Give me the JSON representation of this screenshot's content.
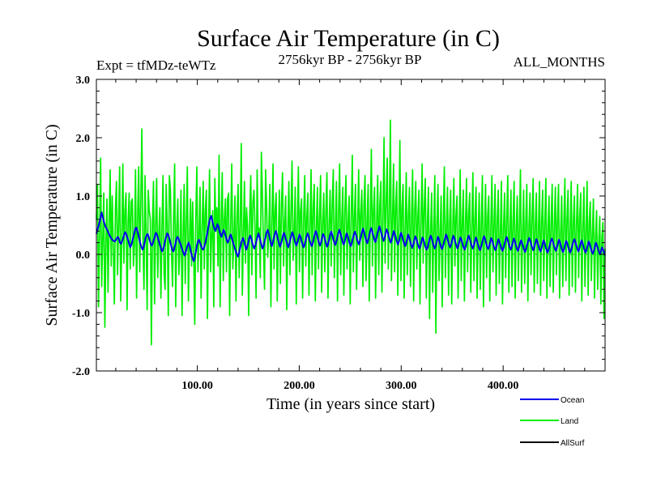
{
  "chart_data": {
    "type": "line",
    "title": "Surface Air Temperature (in C)",
    "subtitle": "2756kyr BP - 2756kyr BP",
    "experiment_label": "Expt = tfMDz-teWTz",
    "month_label": "ALL_MONTHS",
    "xlabel": "Time (in years since start)",
    "ylabel": "Surface Air Temperature (in C)",
    "xlim": [
      1,
      500
    ],
    "ylim": [
      -2.0,
      3.0
    ],
    "x_ticks": [
      100,
      200,
      300,
      400
    ],
    "x_tick_labels": [
      "100.00",
      "200.00",
      "300.00",
      "400.00"
    ],
    "y_ticks": [
      -2,
      -1,
      0,
      1,
      2,
      3
    ],
    "y_tick_labels": [
      "-2.0",
      "-1.0",
      "0.0",
      "1.0",
      "2.0",
      "3.0"
    ],
    "zero_reference": 0.0,
    "series": [
      {
        "name": "Land",
        "color": "#00ee00",
        "values": [
          0.6,
          1.2,
          -0.9,
          0.35,
          1.65,
          -0.55,
          0.25,
          1.05,
          -1.25,
          0.2,
          0.95,
          -0.65,
          0.45,
          1.45,
          -0.2,
          1.0,
          0.1,
          -0.85,
          0.8,
          1.25,
          -0.35,
          0.55,
          1.5,
          -0.8,
          0.2,
          1.55,
          -0.15,
          0.75,
          1.05,
          -0.95,
          0.55,
          1.05,
          -0.25,
          0.9,
          0.95,
          -0.2,
          0.15,
          1.45,
          -0.75,
          0.65,
          1.5,
          -0.3,
          0.9,
          2.15,
          0.25,
          -0.6,
          1.35,
          0.35,
          -0.95,
          1.1,
          0.75,
          0.6,
          -1.55,
          0.5,
          1.25,
          -0.85,
          0.5,
          1.3,
          -0.4,
          0.35,
          0.8,
          -0.75,
          0.45,
          1.35,
          -0.35,
          -0.6,
          1.2,
          0.5,
          -1.05,
          1.35,
          1.1,
          0.05,
          -0.55,
          0.6,
          1.55,
          -0.9,
          0.45,
          0.95,
          -0.35,
          0.1,
          1.1,
          -1.05,
          0.3,
          1.2,
          -0.5,
          0.55,
          1.5,
          -0.8,
          0.25,
          0.95,
          -0.2,
          0.9,
          0.05,
          -1.2,
          0.6,
          1.5,
          -0.3,
          0.3,
          1.15,
          -0.75,
          0.45,
          1.25,
          -0.25,
          0.75,
          1.1,
          -1.1,
          0.4,
          1.45,
          -0.3,
          0.35,
          0.75,
          -0.9,
          1.3,
          0.4,
          0.8,
          -0.2,
          1.7,
          -0.9,
          0.55,
          1.4,
          -0.45,
          0.6,
          0.95,
          -0.3,
          0.95,
          1.05,
          -1.05,
          0.5,
          1.55,
          -0.25,
          0.25,
          1.0,
          -0.8,
          0.65,
          1.2,
          -0.4,
          0.5,
          1.9,
          -0.7,
          0.3,
          1.25,
          -0.15,
          0.8,
          0.45,
          -1.05,
          0.7,
          1.35,
          -0.35,
          0.9,
          1.1,
          0.45,
          -0.75,
          1.45,
          0.3,
          0.45,
          -0.4,
          1.75,
          1.0,
          0.1,
          -0.6,
          1.45,
          0.8,
          -0.05,
          0.35,
          1.2,
          -0.9,
          0.55,
          1.55,
          -0.25,
          0.75,
          1.05,
          -0.8,
          0.2,
          1.1,
          -0.5,
          0.85,
          1.4,
          -0.2,
          0.55,
          1.0,
          -0.95,
          0.4,
          1.25,
          -0.35,
          0.7,
          1.6,
          -0.1,
          0.35,
          1.15,
          -0.85,
          0.55,
          1.5,
          -0.3,
          0.75,
          0.95,
          -0.75,
          0.6,
          1.35,
          -0.2,
          0.65,
          1.05,
          -0.7,
          0.45,
          1.45,
          -0.35,
          0.8,
          1.2,
          -0.8,
          0.45,
          1.15,
          -0.25,
          0.65,
          1.35,
          -0.65,
          0.55,
          1.05,
          -0.3,
          0.75,
          1.4,
          -0.75,
          0.5,
          1.1,
          -0.2,
          0.85,
          1.45,
          -0.4,
          0.45,
          1.25,
          -0.8,
          0.7,
          1.55,
          -0.35,
          0.55,
          1.15,
          -0.7,
          0.75,
          1.35,
          -0.25,
          0.55,
          1.0,
          -0.85,
          0.65,
          1.7,
          -0.3,
          0.65,
          1.2,
          -0.6,
          0.5,
          1.45,
          -0.1,
          0.7,
          1.1,
          -0.55,
          0.85,
          1.35,
          -0.45,
          0.6,
          1.2,
          -0.8,
          0.55,
          1.8,
          -0.2,
          0.75,
          1.15,
          -0.75,
          0.55,
          1.35,
          -0.35,
          0.85,
          1.25,
          -0.65,
          0.6,
          2.0,
          -0.15,
          0.85,
          1.65,
          -0.25,
          0.65,
          2.3,
          -0.45,
          0.55,
          1.55,
          -0.3,
          0.85,
          1.25,
          -0.7,
          0.55,
          1.95,
          -0.45,
          0.8,
          1.2,
          -0.75,
          0.45,
          1.4,
          -0.35,
          0.65,
          1.15,
          -0.55,
          0.6,
          1.45,
          -0.8,
          0.75,
          1.25,
          -0.25,
          0.65,
          1.1,
          -0.85,
          0.55,
          1.55,
          -0.15,
          0.8,
          1.3,
          -0.75,
          0.55,
          1.15,
          -1.1,
          0.4,
          1.05,
          -0.65,
          0.45,
          1.35,
          -1.35,
          0.55,
          1.2,
          -0.45,
          0.35,
          1.0,
          -0.9,
          0.5,
          1.5,
          -0.4,
          0.45,
          1.15,
          -0.7,
          0.55,
          1.1,
          -0.85,
          0.45,
          1.3,
          -0.2,
          0.65,
          1.0,
          -0.75,
          0.35,
          1.45,
          -0.45,
          0.55,
          1.1,
          -0.8,
          0.5,
          1.3,
          -0.3,
          0.7,
          1.05,
          -0.65,
          0.45,
          1.4,
          -0.45,
          0.6,
          1.15,
          -0.75,
          0.35,
          1.05,
          -0.6,
          0.55,
          1.35,
          -0.9,
          0.4,
          1.2,
          -0.4,
          0.65,
          1.0,
          -0.8,
          0.45,
          1.35,
          -0.3,
          0.5,
          1.2,
          -0.7,
          0.55,
          1.1,
          -0.5,
          0.35,
          1.25,
          -0.85,
          0.45,
          1.05,
          -0.4,
          0.6,
          1.35,
          -0.65,
          0.4,
          1.1,
          -0.55,
          0.55,
          1.25,
          -0.75,
          0.45,
          1.0,
          -0.45,
          0.5,
          1.45,
          -0.65,
          0.35,
          1.1,
          -0.5,
          0.55,
          1.2,
          -0.8,
          0.45,
          1.05,
          -0.35,
          0.6,
          1.3,
          -0.65,
          0.45,
          1.05,
          -0.5,
          0.4,
          1.25,
          -0.7,
          0.55,
          1.1,
          -0.45,
          0.5,
          1.3,
          -0.75,
          0.4,
          1.0,
          -0.55,
          0.55,
          1.2,
          -0.65,
          0.45,
          1.15,
          -0.35,
          0.6,
          1.2,
          -0.75,
          0.35,
          1.0,
          -0.55,
          0.5,
          1.3,
          -0.45,
          0.6,
          1.1,
          -0.7,
          0.4,
          1.25,
          -0.55,
          0.55,
          1.0,
          -0.65,
          0.5,
          1.2,
          -0.4,
          0.65,
          1.05,
          -0.8,
          0.45,
          1.15,
          -0.55,
          0.4,
          1.25,
          -0.7,
          0.55,
          0.9,
          -0.45,
          0.35,
          0.95,
          -0.75,
          0.3,
          0.75,
          -0.6,
          0.2,
          0.65,
          -0.85,
          0.3,
          0.55,
          -1.1,
          0.1
        ]
      },
      {
        "name": "Ocean",
        "color": "#0000ee",
        "values": [
          0.35,
          0.42,
          0.48,
          0.55,
          0.62,
          0.72,
          0.66,
          0.58,
          0.52,
          0.47,
          0.44,
          0.4,
          0.36,
          0.32,
          0.29,
          0.26,
          0.24,
          0.23,
          0.22,
          0.25,
          0.28,
          0.3,
          0.26,
          0.2,
          0.18,
          0.22,
          0.27,
          0.33,
          0.38,
          0.35,
          0.3,
          0.24,
          0.18,
          0.12,
          0.16,
          0.22,
          0.3,
          0.37,
          0.44,
          0.46,
          0.4,
          0.33,
          0.25,
          0.18,
          0.12,
          0.08,
          0.12,
          0.2,
          0.28,
          0.33,
          0.35,
          0.3,
          0.24,
          0.18,
          0.15,
          0.19,
          0.25,
          0.31,
          0.37,
          0.34,
          0.28,
          0.22,
          0.16,
          0.1,
          0.05,
          0.08,
          0.15,
          0.23,
          0.3,
          0.36,
          0.34,
          0.28,
          0.21,
          0.14,
          0.08,
          0.05,
          0.1,
          0.18,
          0.26,
          0.3,
          0.27,
          0.22,
          0.18,
          0.12,
          0.07,
          0.02,
          -0.02,
          0.03,
          0.1,
          0.16,
          0.2,
          0.14,
          0.06,
          -0.02,
          -0.08,
          -0.12,
          -0.05,
          0.05,
          0.15,
          0.22,
          0.25,
          0.2,
          0.15,
          0.1,
          0.08,
          0.12,
          0.18,
          0.26,
          0.35,
          0.45,
          0.55,
          0.62,
          0.66,
          0.58,
          0.5,
          0.44,
          0.4,
          0.45,
          0.52,
          0.48,
          0.4,
          0.34,
          0.3,
          0.36,
          0.42,
          0.38,
          0.32,
          0.25,
          0.2,
          0.24,
          0.3,
          0.34,
          0.28,
          0.22,
          0.16,
          0.1,
          0.05,
          0.0,
          -0.04,
          0.02,
          0.1,
          0.18,
          0.24,
          0.28,
          0.22,
          0.15,
          0.08,
          0.12,
          0.2,
          0.28,
          0.32,
          0.27,
          0.2,
          0.14,
          0.1,
          0.15,
          0.22,
          0.3,
          0.36,
          0.3,
          0.23,
          0.16,
          0.1,
          0.14,
          0.22,
          0.3,
          0.38,
          0.42,
          0.36,
          0.28,
          0.2,
          0.14,
          0.2,
          0.28,
          0.35,
          0.4,
          0.34,
          0.26,
          0.19,
          0.13,
          0.18,
          0.25,
          0.33,
          0.37,
          0.31,
          0.24,
          0.17,
          0.12,
          0.17,
          0.25,
          0.32,
          0.38,
          0.33,
          0.26,
          0.2,
          0.15,
          0.2,
          0.27,
          0.34,
          0.3,
          0.23,
          0.17,
          0.12,
          0.16,
          0.24,
          0.31,
          0.36,
          0.31,
          0.24,
          0.18,
          0.14,
          0.19,
          0.27,
          0.35,
          0.4,
          0.34,
          0.27,
          0.2,
          0.15,
          0.2,
          0.28,
          0.35,
          0.32,
          0.25,
          0.18,
          0.13,
          0.18,
          0.26,
          0.34,
          0.39,
          0.33,
          0.26,
          0.2,
          0.16,
          0.22,
          0.3,
          0.37,
          0.42,
          0.36,
          0.29,
          0.22,
          0.17,
          0.21,
          0.29,
          0.36,
          0.32,
          0.25,
          0.19,
          0.14,
          0.19,
          0.27,
          0.34,
          0.39,
          0.34,
          0.27,
          0.21,
          0.17,
          0.23,
          0.31,
          0.38,
          0.44,
          0.38,
          0.31,
          0.24,
          0.19,
          0.24,
          0.32,
          0.4,
          0.45,
          0.39,
          0.32,
          0.26,
          0.21,
          0.27,
          0.35,
          0.42,
          0.48,
          0.42,
          0.35,
          0.28,
          0.23,
          0.28,
          0.36,
          0.43,
          0.38,
          0.31,
          0.25,
          0.2,
          0.25,
          0.33,
          0.4,
          0.35,
          0.28,
          0.22,
          0.17,
          0.22,
          0.3,
          0.37,
          0.32,
          0.25,
          0.19,
          0.14,
          0.19,
          0.27,
          0.34,
          0.29,
          0.22,
          0.16,
          0.11,
          0.16,
          0.24,
          0.31,
          0.27,
          0.2,
          0.14,
          0.1,
          0.14,
          0.22,
          0.29,
          0.25,
          0.18,
          0.12,
          0.08,
          0.12,
          0.2,
          0.27,
          0.32,
          0.27,
          0.2,
          0.14,
          0.1,
          0.15,
          0.23,
          0.3,
          0.26,
          0.19,
          0.13,
          0.09,
          0.14,
          0.21,
          0.28,
          0.34,
          0.29,
          0.22,
          0.16,
          0.12,
          0.17,
          0.25,
          0.32,
          0.28,
          0.21,
          0.15,
          0.1,
          0.15,
          0.22,
          0.29,
          0.25,
          0.18,
          0.12,
          0.08,
          0.13,
          0.2,
          0.27,
          0.32,
          0.27,
          0.2,
          0.14,
          0.1,
          0.15,
          0.22,
          0.29,
          0.24,
          0.17,
          0.11,
          0.07,
          0.12,
          0.19,
          0.26,
          0.31,
          0.26,
          0.19,
          0.13,
          0.09,
          0.14,
          0.21,
          0.28,
          0.24,
          0.17,
          0.11,
          0.07,
          0.12,
          0.19,
          0.26,
          0.22,
          0.16,
          0.1,
          0.06,
          0.11,
          0.18,
          0.25,
          0.3,
          0.25,
          0.18,
          0.12,
          0.08,
          0.13,
          0.2,
          0.27,
          0.23,
          0.16,
          0.1,
          0.06,
          0.11,
          0.18,
          0.24,
          0.2,
          0.14,
          0.08,
          0.04,
          0.09,
          0.16,
          0.23,
          0.28,
          0.24,
          0.17,
          0.11,
          0.07,
          0.12,
          0.19,
          0.26,
          0.22,
          0.15,
          0.09,
          0.05,
          0.1,
          0.17,
          0.24,
          0.2,
          0.13,
          0.07,
          0.03,
          0.08,
          0.15,
          0.22,
          0.27,
          0.23,
          0.16,
          0.1,
          0.06,
          0.11,
          0.18,
          0.25,
          0.21,
          0.14,
          0.08,
          0.04,
          0.09,
          0.16,
          0.23,
          0.2,
          0.13,
          0.07,
          0.03,
          0.08,
          0.15,
          0.21,
          0.26,
          0.22,
          0.15,
          0.09,
          0.05,
          0.1,
          0.17,
          0.24,
          0.2,
          0.13,
          0.07,
          0.03,
          0.08,
          0.15,
          0.22,
          0.18,
          0.11,
          0.05,
          0.01,
          0.06,
          0.13,
          0.2,
          0.16,
          0.1,
          0.05,
          0.0,
          0.05,
          0.12,
          0.08,
          0.03,
          -0.02
        ]
      },
      {
        "name": "AllSurf",
        "color": "#000000",
        "values": []
      }
    ]
  }
}
